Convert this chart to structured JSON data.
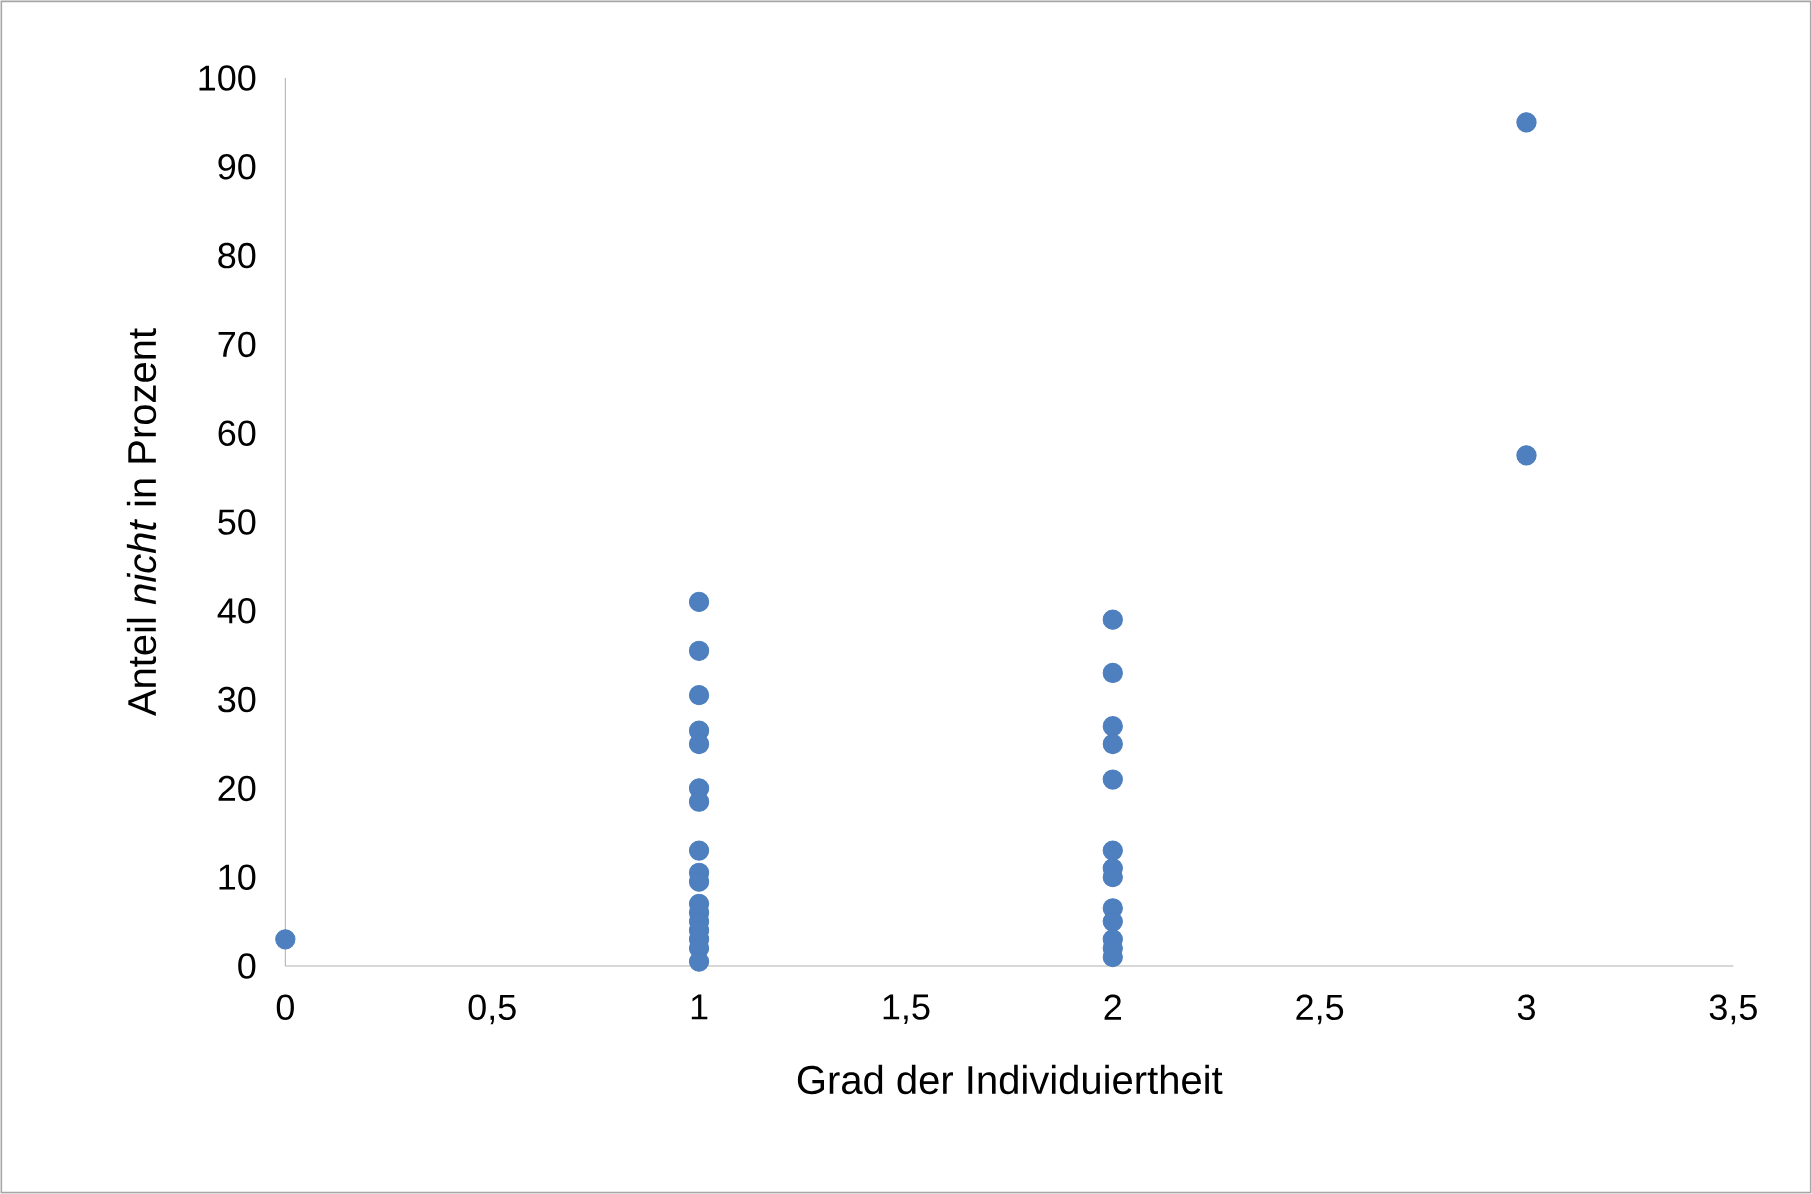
{
  "chart_data": {
    "type": "scatter",
    "xlabel": "Grad der Individuiertheit",
    "ylabel": "Anteil *nicht* in Prozent",
    "xlim": [
      0,
      3.5
    ],
    "ylim": [
      0,
      100
    ],
    "xticks": [
      0,
      {
        "value": 0.5,
        "label": "0,5"
      },
      1,
      {
        "value": 1.5,
        "label": "1,5"
      },
      2,
      {
        "value": 2.5,
        "label": "2,5"
      },
      3,
      {
        "value": 3.5,
        "label": "3,5"
      }
    ],
    "yticks": [
      0,
      10,
      20,
      30,
      40,
      50,
      60,
      70,
      80,
      90,
      100
    ],
    "series": [
      {
        "color": "#4e7fbf",
        "x": [
          0,
          1,
          1,
          1,
          1,
          1,
          1,
          1,
          1,
          1,
          1,
          1,
          1,
          1,
          1,
          1,
          1,
          1,
          2,
          2,
          2,
          2,
          2,
          2,
          2,
          2,
          2,
          2,
          2,
          2,
          2,
          3,
          3
        ],
        "values": [
          3,
          41,
          35.5,
          30.5,
          26.5,
          25,
          20,
          18.5,
          13,
          10.5,
          9.5,
          7,
          6,
          5,
          4,
          3,
          2,
          0.5,
          39,
          33,
          27,
          25,
          21,
          13,
          11,
          10,
          6.5,
          5,
          3,
          2,
          1,
          95,
          57.5
        ]
      }
    ]
  }
}
